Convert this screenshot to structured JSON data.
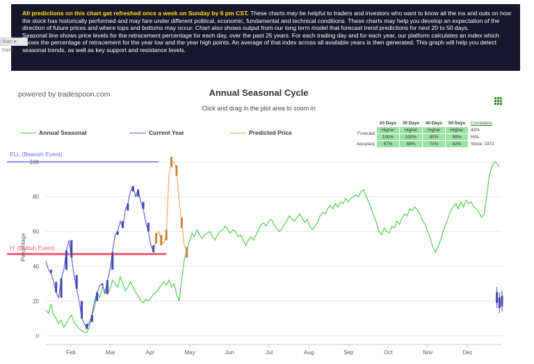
{
  "info": {
    "highlight": "All predictions on this chart get refreshed once a week on Sunday by 6 pm CST.",
    "text1": " These charts may be helpful to traders and investors who want to know all the ins and outs on how the stock has historically performed and may fare under different political, economic, fundamental and technical conditions. These charts may help you develop an expectation of the direction of future prices and where tops and bottoms may occur. Chart also shows output from our long term model that forecast trend predictions for next 20 to 50 days.",
    "text2": "Seasonal line shows price levels for the retracement percentage for each day, over the past 25 years. For each trading day and for each year, our platform calculates an index which shows the percentage of retracement for the year low and the year high points. An average of that index across all available years is then generated. This graph will help you detect seasonal trends, as well as key support and resistance levels."
  },
  "side_tab": "Start a Gam",
  "powered_by": "powered by tradespoon.com",
  "chart_data": {
    "type": "line",
    "title": "Annual Seasonal Cycle",
    "subtitle": "Click and drag in the plot area to zoom in",
    "ylabel": "Percentage",
    "ylim": [
      -5,
      102
    ],
    "yticks": [
      0,
      20,
      40,
      60,
      80,
      100
    ],
    "months": [
      "Feb",
      "Mar",
      "Apr",
      "May",
      "Jun",
      "Jul",
      "Aug",
      "Sep",
      "Oct",
      "Nov",
      "Dec"
    ],
    "grid": true,
    "legend_placement": "top",
    "series": [
      {
        "name": "Annual Seasonal",
        "color": "#44c744"
      },
      {
        "name": "Current Year",
        "color": "#5656d4"
      },
      {
        "name": "Predicted Price",
        "color": "#f0a050"
      }
    ],
    "plotlines": [
      {
        "label": "ELL (Bearish Event)",
        "value": 100,
        "color": "#6a6ae8"
      },
      {
        "label": "IY (Bullish Event)",
        "value": 47,
        "color": "#f05a70"
      }
    ],
    "seasonal_points": [
      [
        0,
        15
      ],
      [
        1,
        13
      ],
      [
        2,
        18
      ],
      [
        3,
        12
      ],
      [
        4,
        10
      ],
      [
        5,
        7
      ],
      [
        6,
        9
      ],
      [
        7,
        5
      ],
      [
        8,
        7
      ],
      [
        9,
        10
      ],
      [
        10,
        12
      ],
      [
        11,
        8
      ],
      [
        12,
        6
      ],
      [
        13,
        4
      ],
      [
        14,
        3
      ],
      [
        15,
        2
      ],
      [
        16,
        2
      ],
      [
        17,
        5
      ],
      [
        18,
        12
      ],
      [
        19,
        16
      ],
      [
        20,
        25
      ],
      [
        21,
        22
      ],
      [
        22,
        28
      ],
      [
        23,
        26
      ],
      [
        24,
        24
      ],
      [
        25,
        27
      ],
      [
        26,
        32
      ],
      [
        27,
        30
      ],
      [
        28,
        28
      ],
      [
        29,
        34
      ],
      [
        30,
        30
      ],
      [
        31,
        26
      ],
      [
        32,
        28
      ],
      [
        33,
        31
      ],
      [
        34,
        28
      ],
      [
        35,
        25
      ],
      [
        36,
        23
      ],
      [
        37,
        20
      ],
      [
        38,
        19
      ],
      [
        39,
        21
      ],
      [
        40,
        20
      ],
      [
        41,
        22
      ],
      [
        42,
        24
      ],
      [
        43,
        25
      ],
      [
        44,
        27
      ],
      [
        45,
        29
      ],
      [
        46,
        31
      ],
      [
        47,
        29
      ],
      [
        48,
        32
      ],
      [
        49,
        28
      ],
      [
        50,
        30
      ],
      [
        51,
        24
      ],
      [
        52,
        20
      ],
      [
        53,
        32
      ],
      [
        54,
        44
      ],
      [
        55,
        49
      ],
      [
        56,
        54
      ],
      [
        57,
        59
      ],
      [
        58,
        57
      ],
      [
        59,
        61
      ],
      [
        60,
        58
      ],
      [
        61,
        56
      ],
      [
        62,
        58
      ],
      [
        63,
        59
      ],
      [
        64,
        60
      ],
      [
        65,
        57
      ],
      [
        66,
        55
      ],
      [
        67,
        58
      ],
      [
        68,
        60
      ],
      [
        69,
        61
      ],
      [
        70,
        63
      ],
      [
        71,
        61
      ],
      [
        72,
        59
      ],
      [
        73,
        61
      ],
      [
        74,
        60
      ],
      [
        75,
        57
      ],
      [
        76,
        58
      ],
      [
        77,
        55
      ],
      [
        78,
        52
      ],
      [
        79,
        55
      ],
      [
        80,
        57
      ],
      [
        81,
        55
      ],
      [
        82,
        58
      ],
      [
        83,
        61
      ],
      [
        84,
        64
      ],
      [
        85,
        65
      ],
      [
        86,
        63
      ],
      [
        87,
        66
      ],
      [
        88,
        67
      ],
      [
        89,
        64
      ],
      [
        90,
        62
      ],
      [
        91,
        60
      ],
      [
        92,
        61
      ],
      [
        93,
        64
      ],
      [
        94,
        66
      ],
      [
        95,
        69
      ],
      [
        96,
        67
      ],
      [
        97,
        66
      ],
      [
        98,
        68
      ],
      [
        99,
        70
      ],
      [
        100,
        68
      ],
      [
        101,
        65
      ],
      [
        102,
        67
      ],
      [
        103,
        63
      ],
      [
        104,
        61
      ],
      [
        105,
        63
      ],
      [
        106,
        65
      ],
      [
        107,
        69
      ],
      [
        108,
        71
      ],
      [
        109,
        70
      ],
      [
        110,
        73
      ],
      [
        111,
        75
      ],
      [
        112,
        73
      ],
      [
        113,
        76
      ],
      [
        114,
        74
      ],
      [
        115,
        77
      ],
      [
        116,
        76
      ],
      [
        117,
        79
      ],
      [
        118,
        77
      ],
      [
        119,
        79
      ],
      [
        120,
        80
      ],
      [
        121,
        81
      ],
      [
        122,
        80
      ],
      [
        123,
        83
      ],
      [
        124,
        84
      ],
      [
        125,
        80
      ],
      [
        126,
        77
      ],
      [
        127,
        73
      ],
      [
        128,
        69
      ],
      [
        129,
        65
      ],
      [
        130,
        60
      ],
      [
        131,
        58
      ],
      [
        132,
        62
      ],
      [
        133,
        60
      ],
      [
        134,
        59
      ],
      [
        135,
        63
      ],
      [
        136,
        62
      ],
      [
        137,
        66
      ],
      [
        138,
        64
      ],
      [
        139,
        68
      ],
      [
        140,
        70
      ],
      [
        141,
        69
      ],
      [
        142,
        73
      ],
      [
        143,
        72
      ],
      [
        144,
        74
      ],
      [
        145,
        72
      ],
      [
        146,
        70
      ],
      [
        147,
        66
      ],
      [
        148,
        64
      ],
      [
        149,
        60
      ],
      [
        150,
        56
      ],
      [
        151,
        51
      ],
      [
        152,
        48
      ],
      [
        153,
        51
      ],
      [
        154,
        55
      ],
      [
        155,
        60
      ],
      [
        156,
        64
      ],
      [
        157,
        68
      ],
      [
        158,
        72
      ],
      [
        159,
        74
      ],
      [
        160,
        76
      ],
      [
        161,
        73
      ],
      [
        162,
        77
      ],
      [
        163,
        74
      ],
      [
        164,
        78
      ],
      [
        165,
        76
      ],
      [
        166,
        77
      ],
      [
        167,
        74
      ],
      [
        168,
        73
      ],
      [
        169,
        71
      ],
      [
        170,
        68
      ],
      [
        171,
        70
      ],
      [
        172,
        80
      ],
      [
        173,
        92
      ],
      [
        174,
        97
      ],
      [
        175,
        100
      ],
      [
        176,
        99
      ],
      [
        177,
        97
      ]
    ],
    "current_year_points": [
      [
        0,
        43
      ],
      [
        1,
        38
      ],
      [
        2,
        36
      ],
      [
        3,
        31
      ],
      [
        4,
        25
      ],
      [
        5,
        22
      ],
      [
        6,
        33
      ],
      [
        7,
        38
      ],
      [
        8,
        49
      ],
      [
        9,
        55
      ],
      [
        10,
        45
      ],
      [
        11,
        35
      ],
      [
        12,
        27
      ],
      [
        13,
        20
      ],
      [
        14,
        10
      ],
      [
        15,
        7
      ],
      [
        16,
        4
      ],
      [
        17,
        8
      ],
      [
        18,
        12
      ],
      [
        19,
        20
      ],
      [
        20,
        25
      ],
      [
        21,
        29
      ],
      [
        22,
        30
      ],
      [
        23,
        24
      ],
      [
        24,
        32
      ],
      [
        25,
        38
      ],
      [
        26,
        48
      ],
      [
        27,
        58
      ],
      [
        28,
        60
      ],
      [
        29,
        66
      ],
      [
        30,
        62
      ],
      [
        31,
        72
      ],
      [
        32,
        76
      ],
      [
        33,
        83
      ],
      [
        34,
        86
      ],
      [
        35,
        80
      ],
      [
        36,
        84
      ],
      [
        37,
        77
      ],
      [
        38,
        73
      ],
      [
        39,
        65
      ],
      [
        40,
        60
      ],
      [
        41,
        52
      ],
      [
        42,
        48
      ]
    ],
    "predicted_points": [
      [
        42,
        48
      ],
      [
        43,
        56
      ],
      [
        44,
        60
      ],
      [
        45,
        55
      ],
      [
        46,
        53
      ],
      [
        47,
        58
      ],
      [
        48,
        92
      ],
      [
        49,
        100
      ],
      [
        50,
        100
      ],
      [
        51,
        95
      ],
      [
        52,
        78
      ],
      [
        53,
        65
      ],
      [
        54,
        52
      ],
      [
        55,
        48
      ]
    ],
    "end_candles": [
      [
        176,
        22
      ],
      [
        177,
        19
      ],
      [
        178,
        20
      ]
    ]
  },
  "stats": {
    "headers": [
      "20 Days",
      "30 Days",
      "40 Days",
      "50 Days"
    ],
    "forecast_label": "Forecast",
    "forecast_dir": [
      "Higher",
      "Higher",
      "Higher",
      "Higher"
    ],
    "forecast_pct": [
      "100%",
      "100%",
      "85%",
      "99%"
    ],
    "accuracy_label": "Accuracy",
    "accuracy_pct": [
      "67%",
      "68%",
      "73%",
      "82%"
    ],
    "correlation_label": "Correlation",
    "correlation_value": "42%",
    "hal": "HAL",
    "since": "Since: 1972"
  }
}
